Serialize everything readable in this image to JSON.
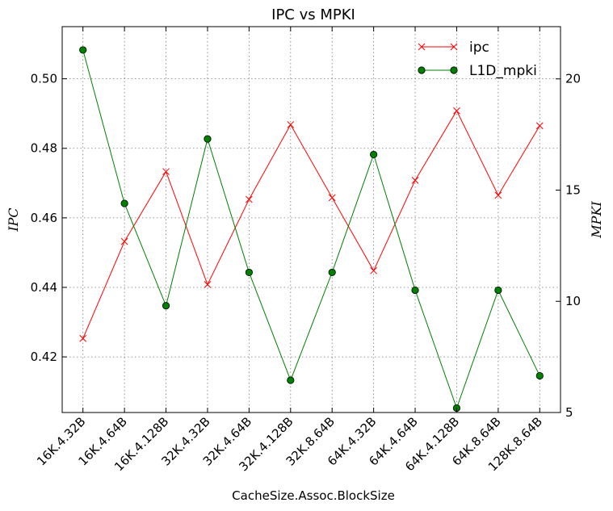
{
  "chart_data": {
    "type": "line",
    "title": "IPC vs MPKI",
    "xlabel": "CacheSize.Assoc.BlockSize",
    "ylabel_left": "IPC",
    "ylabel_right": "MPKI",
    "categories": [
      "16K.4.32B",
      "16K.4.64B",
      "16K.4.128B",
      "32K.4.32B",
      "32K.4.64B",
      "32K.4.128B",
      "32K.8.64B",
      "64K.4.32B",
      "64K.4.64B",
      "64K.4.128B",
      "64K.8.64B",
      "128K.8.64B"
    ],
    "y_left_lim": [
      0.404,
      0.515
    ],
    "y_left_ticks": [
      0.42,
      0.44,
      0.46,
      0.48,
      0.5
    ],
    "y_right_lim": [
      5,
      22.35
    ],
    "y_right_ticks": [
      5,
      10,
      15,
      20
    ],
    "grid": true,
    "legend_position": "top-right",
    "series": [
      {
        "name": "ipc",
        "axis": "left",
        "color": "#ff0000",
        "marker": "x",
        "values": [
          0.4253,
          0.4532,
          0.4733,
          0.4408,
          0.4653,
          0.4868,
          0.4658,
          0.4448,
          0.4708,
          0.4908,
          0.4665,
          0.4865
        ]
      },
      {
        "name": "L1D_mpki",
        "axis": "right",
        "color": "#008000",
        "marker": "circle",
        "values": [
          21.3,
          14.4,
          9.8,
          17.3,
          11.3,
          6.45,
          11.3,
          16.6,
          10.5,
          5.2,
          10.5,
          6.65
        ]
      }
    ]
  }
}
